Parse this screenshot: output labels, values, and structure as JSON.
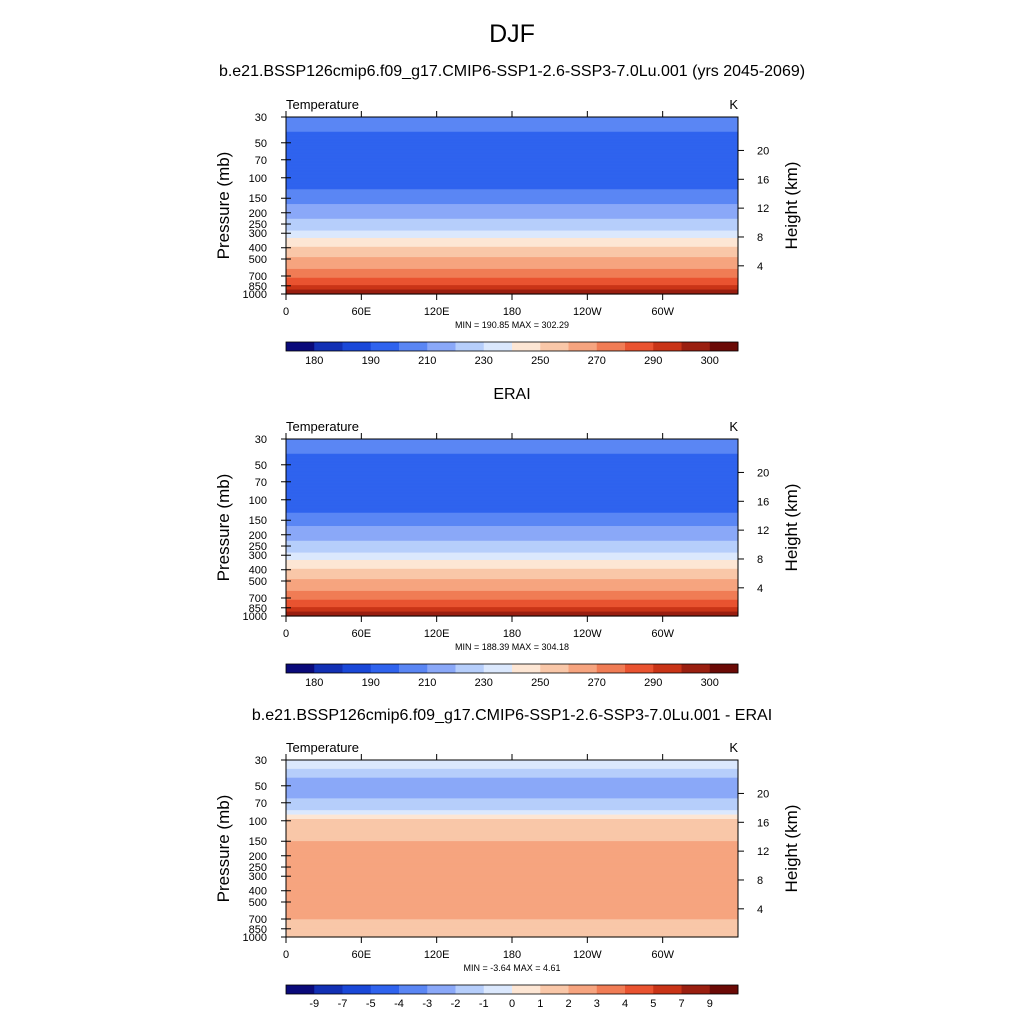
{
  "page": {
    "season": "DJF",
    "case_title": "b.e21.BSSP126cmip6.f09_g17.CMIP6-SSP1-2.6-SSP3-7.0Lu.001 (yrs 2045-2069)",
    "obs_title": "ERAI",
    "diff_title": "b.e21.BSSP126cmip6.f09_g17.CMIP6-SSP1-2.6-SSP3-7.0Lu.001 - ERAI"
  },
  "chart_data": [
    {
      "type": "heatmap",
      "panel": "case",
      "left_label": "Temperature",
      "units_label": "K",
      "ylabel": "Pressure (mb)",
      "y2label": "Height (km)",
      "x_ticks": [
        "0",
        "60E",
        "120E",
        "180",
        "120W",
        "60W"
      ],
      "y_ticks": [
        "30",
        "50",
        "70",
        "100",
        "150",
        "200",
        "250",
        "300",
        "400",
        "500",
        "700",
        "850",
        "1000"
      ],
      "y2_ticks": [
        "20",
        "16",
        "12",
        "8",
        "4"
      ],
      "stats": "MIN = 190.85  MAX = 302.29",
      "colorbar_labels": [
        "180",
        "190",
        "210",
        "230",
        "250",
        "270",
        "290",
        "300"
      ],
      "colorbar_colors": [
        "#0a0a7a",
        "#1230b4",
        "#1a48d8",
        "#2f63ee",
        "#5a86f4",
        "#8aa8f8",
        "#b6cefb",
        "#dbe8fd",
        "#fde6d4",
        "#f9c7a8",
        "#f6a47f",
        "#f07c55",
        "#e95330",
        "#c93417",
        "#9a1f10",
        "#6b0a06"
      ],
      "levels": [
        {
          "p": 30,
          "value": 210
        },
        {
          "p": 60,
          "value": 200
        },
        {
          "p": 100,
          "value": 200
        },
        {
          "p": 150,
          "value": 210
        },
        {
          "p": 200,
          "value": 220
        },
        {
          "p": 250,
          "value": 225
        },
        {
          "p": 300,
          "value": 235
        },
        {
          "p": 400,
          "value": 250
        },
        {
          "p": 500,
          "value": 258
        },
        {
          "p": 700,
          "value": 272
        },
        {
          "p": 850,
          "value": 283
        },
        {
          "p": 1000,
          "value": 300
        }
      ]
    },
    {
      "type": "heatmap",
      "panel": "obs",
      "left_label": "Temperature",
      "units_label": "K",
      "ylabel": "Pressure (mb)",
      "y2label": "Height (km)",
      "x_ticks": [
        "0",
        "60E",
        "120E",
        "180",
        "120W",
        "60W"
      ],
      "y_ticks": [
        "30",
        "50",
        "70",
        "100",
        "150",
        "200",
        "250",
        "300",
        "400",
        "500",
        "700",
        "850",
        "1000"
      ],
      "y2_ticks": [
        "20",
        "16",
        "12",
        "8",
        "4"
      ],
      "stats": "MIN = 188.39  MAX = 304.18",
      "colorbar_labels": [
        "180",
        "190",
        "210",
        "230",
        "250",
        "270",
        "290",
        "300"
      ],
      "colorbar_colors": [
        "#0a0a7a",
        "#1230b4",
        "#1a48d8",
        "#2f63ee",
        "#5a86f4",
        "#8aa8f8",
        "#b6cefb",
        "#dbe8fd",
        "#fde6d4",
        "#f9c7a8",
        "#f6a47f",
        "#f07c55",
        "#e95330",
        "#c93417",
        "#9a1f10",
        "#6b0a06"
      ],
      "levels": [
        {
          "p": 30,
          "value": 210
        },
        {
          "p": 60,
          "value": 200
        },
        {
          "p": 100,
          "value": 198
        },
        {
          "p": 150,
          "value": 210
        },
        {
          "p": 200,
          "value": 220
        },
        {
          "p": 250,
          "value": 225
        },
        {
          "p": 300,
          "value": 235
        },
        {
          "p": 400,
          "value": 250
        },
        {
          "p": 500,
          "value": 258
        },
        {
          "p": 700,
          "value": 272
        },
        {
          "p": 850,
          "value": 283
        },
        {
          "p": 1000,
          "value": 300
        }
      ]
    },
    {
      "type": "heatmap",
      "panel": "diff",
      "left_label": "Temperature",
      "units_label": "K",
      "ylabel": "Pressure (mb)",
      "y2label": "Height (km)",
      "x_ticks": [
        "0",
        "60E",
        "120E",
        "180",
        "120W",
        "60W"
      ],
      "y_ticks": [
        "30",
        "50",
        "70",
        "100",
        "150",
        "200",
        "250",
        "300",
        "400",
        "500",
        "700",
        "850",
        "1000"
      ],
      "y2_ticks": [
        "20",
        "16",
        "12",
        "8",
        "4"
      ],
      "stats": "MIN =  -3.64  MAX =   4.61",
      "colorbar_labels": [
        "-9",
        "-7",
        "-5",
        "-4",
        "-3",
        "-2",
        "-1",
        "0",
        "1",
        "2",
        "3",
        "4",
        "5",
        "7",
        "9"
      ],
      "colorbar_colors": [
        "#0a0a7a",
        "#1230b4",
        "#1a48d8",
        "#2f63ee",
        "#5a86f4",
        "#8aa8f8",
        "#b6cefb",
        "#dbe8fd",
        "#fde6d4",
        "#f9c7a8",
        "#f6a47f",
        "#f07c55",
        "#e95330",
        "#c93417",
        "#9a1f10",
        "#6b0a06"
      ],
      "levels": [
        {
          "p": 30,
          "value": 0
        },
        {
          "p": 50,
          "value": -3
        },
        {
          "p": 80,
          "value": -1
        },
        {
          "p": 100,
          "value": 1.5
        },
        {
          "p": 150,
          "value": 2
        },
        {
          "p": 250,
          "value": 2.5
        },
        {
          "p": 400,
          "value": 3
        },
        {
          "p": 700,
          "value": 2
        },
        {
          "p": 850,
          "value": 1
        },
        {
          "p": 1000,
          "value": 1.5
        }
      ]
    }
  ]
}
